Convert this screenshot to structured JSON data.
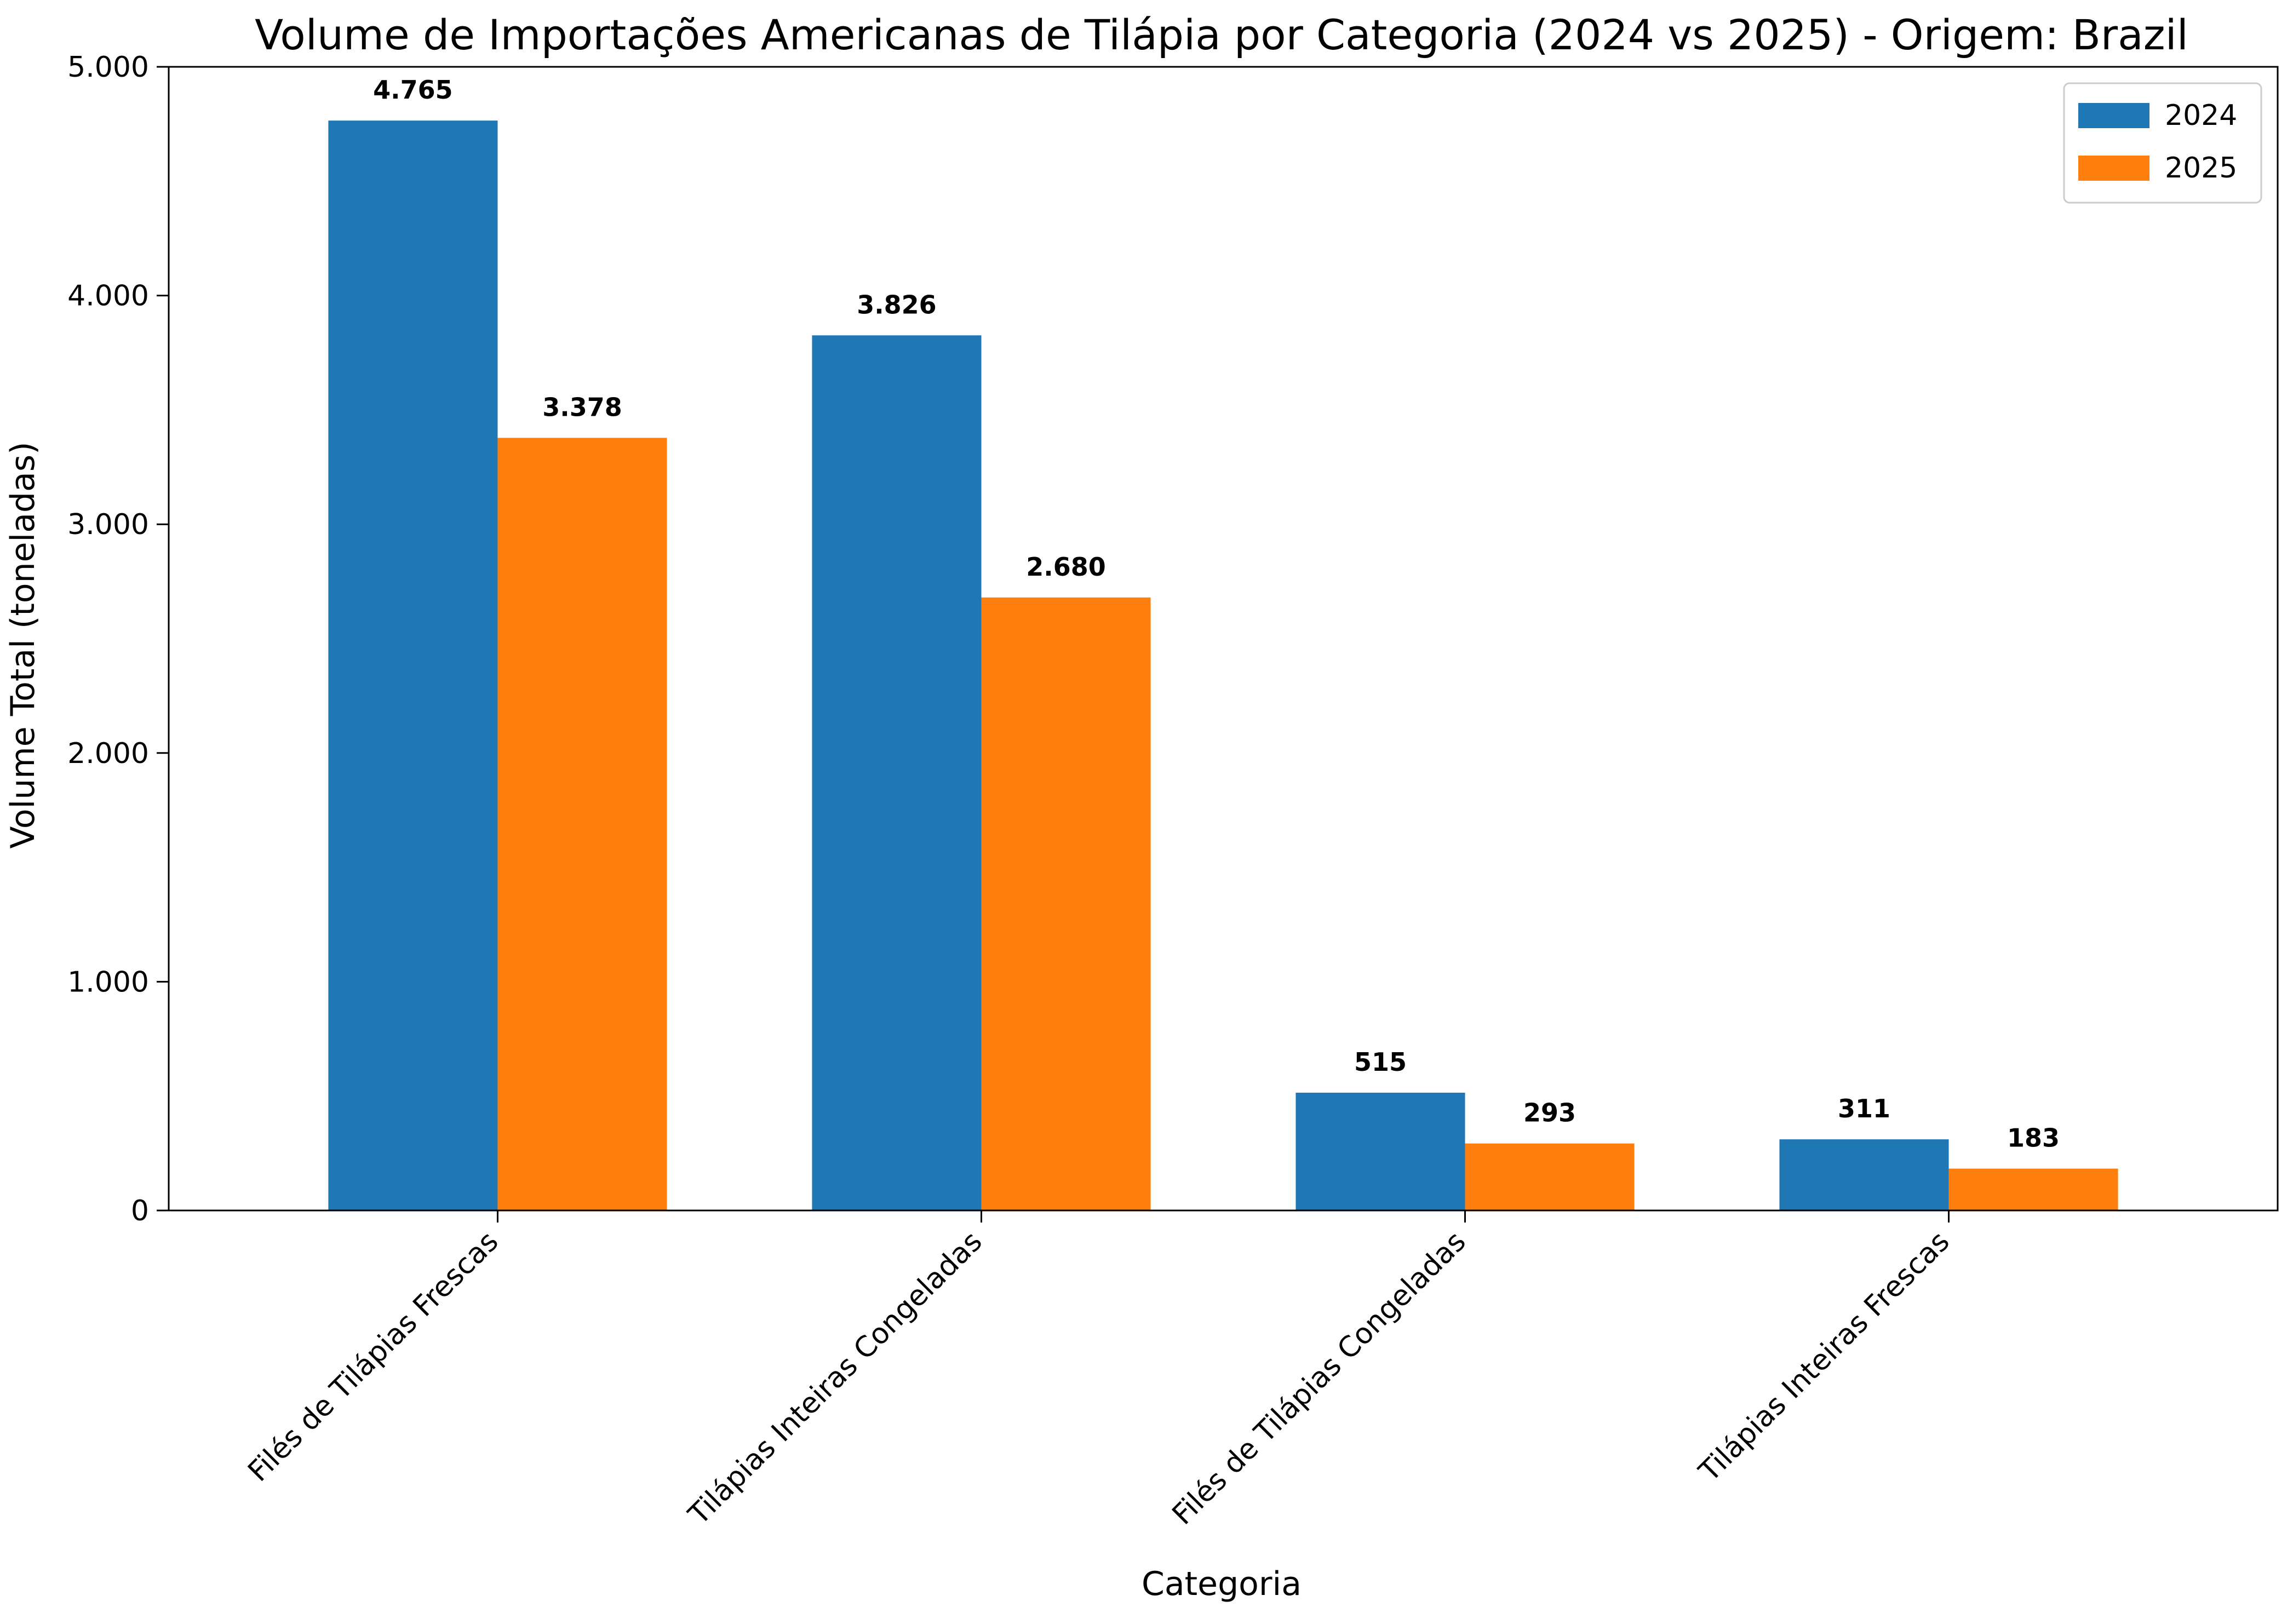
{
  "chart_data": {
    "type": "bar",
    "title": "Volume de Importações Americanas de Tilápia por Categoria (2024 vs 2025) - Origem: Brazil",
    "xlabel": "Categoria",
    "ylabel": "Volume Total (toneladas)",
    "categories": [
      "Filés de Tilápias Frescas",
      "Tilápias Inteiras Congeladas",
      "Filés de Tilápias Congeladas",
      "Tilápias Inteiras Frescas"
    ],
    "series": [
      {
        "name": "2024",
        "color": "#1f77b4",
        "values": [
          4765,
          3826,
          515,
          311
        ],
        "labels": [
          "4.765",
          "3.826",
          "515",
          "311"
        ]
      },
      {
        "name": "2025",
        "color": "#ff7f0e",
        "values": [
          3378,
          2680,
          293,
          183
        ],
        "labels": [
          "3.378",
          "2.680",
          "293",
          "183"
        ]
      }
    ],
    "ylim": [
      0,
      5000
    ],
    "yticks": [
      0,
      1000,
      2000,
      3000,
      4000,
      5000
    ],
    "ytick_labels": [
      "0",
      "1.000",
      "2.000",
      "3.000",
      "4.000",
      "5.000"
    ],
    "grid": false,
    "legend_position": "top-right"
  }
}
